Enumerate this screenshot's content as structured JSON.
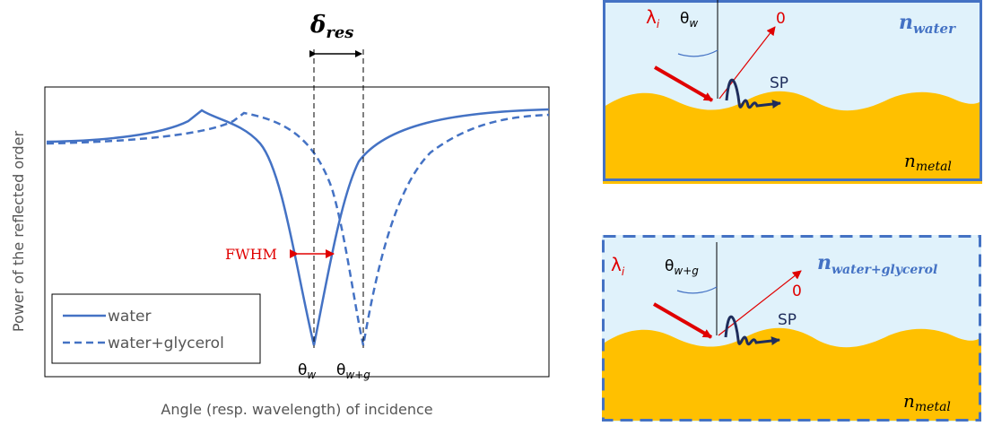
{
  "plot": {
    "delta": {
      "symbol": "δ",
      "subscript": "res"
    },
    "y_axis_label": "Power of the reflected order",
    "x_axis_label": "Angle (resp. wavelength) of incidence",
    "fwhm_label": "FWHM",
    "theta_w": {
      "symbol": "θ",
      "subscript": "w"
    },
    "theta_wg": {
      "symbol": "θ",
      "subscript": "w+g"
    },
    "legend": [
      "water",
      "water+glycerol"
    ]
  },
  "panels": [
    {
      "lambda": {
        "symbol": "λ",
        "subscript": "i"
      },
      "theta": {
        "symbol": "θ",
        "subscript": "w"
      },
      "order": "0",
      "sp": "SP",
      "medium": {
        "symbol": "n",
        "subscript": "water"
      },
      "metal": {
        "symbol": "n",
        "subscript": "metal"
      }
    },
    {
      "lambda": {
        "symbol": "λ",
        "subscript": "i"
      },
      "theta": {
        "symbol": "θ",
        "subscript": "w+g"
      },
      "order": "0",
      "sp": "SP",
      "medium": {
        "symbol": "n",
        "subscript": "water+glycerol"
      },
      "metal": {
        "symbol": "n",
        "subscript": "metal"
      }
    }
  ]
}
